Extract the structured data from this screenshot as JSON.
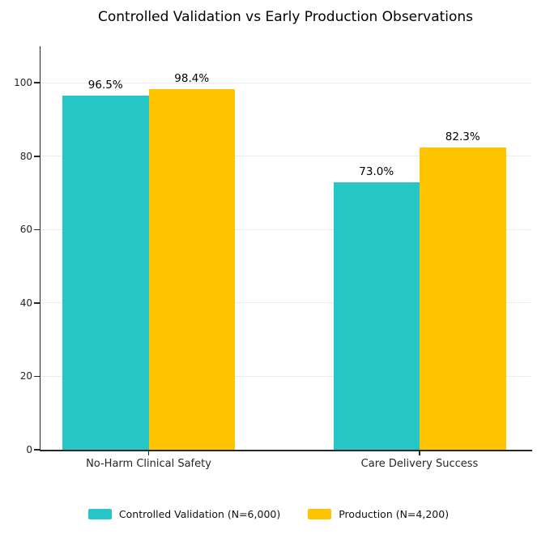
{
  "chart_data": {
    "type": "bar",
    "title": "Controlled Validation vs Early Production Observations",
    "categories": [
      "No-Harm Clinical Safety",
      "Care Delivery Success"
    ],
    "series": [
      {
        "name": "Controlled Validation (N=6,000)",
        "color": "#26C6C6",
        "values": [
          96.5,
          73.0
        ],
        "value_labels": [
          "96.5%",
          "73.0%"
        ]
      },
      {
        "name": "Production (N=4,200)",
        "color": "#FFC400",
        "values": [
          98.4,
          82.3
        ],
        "value_labels": [
          "98.4%",
          "82.3%"
        ]
      }
    ],
    "y_ticks": [
      0,
      20,
      40,
      60,
      80,
      100
    ],
    "ylim": [
      0,
      110
    ],
    "xlabel": "",
    "ylabel": "",
    "grid": "horizontal",
    "legend_position": "bottom",
    "axis_color": "#262626",
    "grid_color": "#EBEBEB",
    "text_color": "#000000"
  }
}
